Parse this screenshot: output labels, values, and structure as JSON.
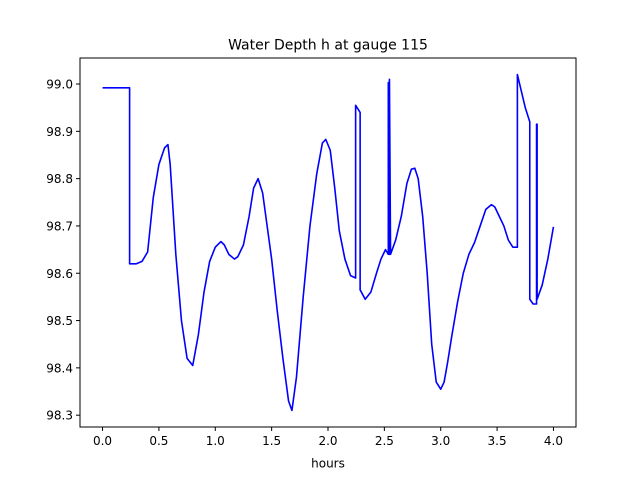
{
  "chart_data": {
    "type": "line",
    "title": "Water Depth h at gauge 115",
    "xlabel": "hours",
    "ylabel": "",
    "xlim": [
      -0.2,
      4.2
    ],
    "ylim": [
      98.275,
      99.055
    ],
    "xticks": [
      0.0,
      0.5,
      1.0,
      1.5,
      2.0,
      2.5,
      3.0,
      3.5,
      4.0
    ],
    "xtick_labels": [
      "0.0",
      "0.5",
      "1.0",
      "1.5",
      "2.0",
      "2.5",
      "3.0",
      "3.5",
      "4.0"
    ],
    "yticks": [
      98.3,
      98.4,
      98.5,
      98.6,
      98.7,
      98.8,
      98.9,
      99.0
    ],
    "ytick_labels": [
      "98.3",
      "98.4",
      "98.5",
      "98.6",
      "98.7",
      "98.8",
      "98.9",
      "99.0"
    ],
    "grid": false,
    "legend": "none",
    "line_color": "#0000ff",
    "series": [
      {
        "x": [
          0.0,
          0.24,
          0.24,
          0.3,
          0.35,
          0.4,
          0.45,
          0.5,
          0.55,
          0.58,
          0.6,
          0.65,
          0.7,
          0.75,
          0.8,
          0.85,
          0.9,
          0.95,
          1.0,
          1.05,
          1.08,
          1.12,
          1.17,
          1.2,
          1.25,
          1.3,
          1.34,
          1.38,
          1.42,
          1.46,
          1.5,
          1.55,
          1.6,
          1.65,
          1.68,
          1.72,
          1.78,
          1.84,
          1.9,
          1.95,
          1.98,
          2.02,
          2.06,
          2.1,
          2.15,
          2.2,
          2.245,
          2.245,
          2.285,
          2.285,
          2.33,
          2.38,
          2.43,
          2.47,
          2.51,
          2.535,
          2.535,
          2.545,
          2.545,
          2.555,
          2.555,
          2.6,
          2.65,
          2.7,
          2.74,
          2.77,
          2.8,
          2.84,
          2.88,
          2.92,
          2.96,
          3.0,
          3.03,
          3.06,
          3.1,
          3.15,
          3.2,
          3.25,
          3.3,
          3.35,
          3.4,
          3.45,
          3.48,
          3.52,
          3.56,
          3.6,
          3.64,
          3.68,
          3.68,
          3.72,
          3.75,
          3.79,
          3.79,
          3.82,
          3.85,
          3.85,
          3.855,
          3.855,
          3.9,
          3.95,
          4.0
        ],
        "y": [
          98.992,
          98.992,
          98.62,
          98.62,
          98.625,
          98.645,
          98.76,
          98.83,
          98.865,
          98.872,
          98.83,
          98.64,
          98.5,
          98.42,
          98.405,
          98.47,
          98.56,
          98.625,
          98.655,
          98.667,
          98.66,
          98.64,
          98.63,
          98.635,
          98.66,
          98.72,
          98.78,
          98.8,
          98.77,
          98.7,
          98.63,
          98.52,
          98.42,
          98.33,
          98.31,
          98.38,
          98.55,
          98.7,
          98.81,
          98.875,
          98.883,
          98.86,
          98.78,
          98.69,
          98.63,
          98.595,
          98.59,
          98.955,
          98.94,
          98.565,
          98.545,
          98.56,
          98.6,
          98.63,
          98.65,
          98.64,
          99.003,
          98.64,
          99.01,
          98.64,
          98.64,
          98.67,
          98.72,
          98.79,
          98.82,
          98.822,
          98.8,
          98.72,
          98.6,
          98.45,
          98.37,
          98.355,
          98.37,
          98.41,
          98.47,
          98.54,
          98.6,
          98.64,
          98.665,
          98.7,
          98.735,
          98.745,
          98.74,
          98.72,
          98.7,
          98.67,
          98.655,
          98.655,
          99.02,
          98.98,
          98.95,
          98.92,
          98.545,
          98.535,
          98.535,
          98.915,
          98.915,
          98.545,
          98.575,
          98.63,
          98.698
        ]
      }
    ]
  }
}
